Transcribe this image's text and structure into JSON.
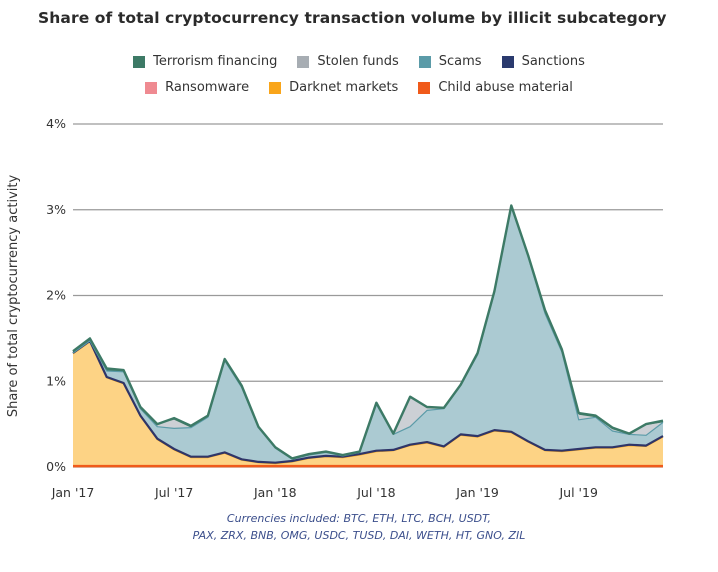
{
  "chart_data": {
    "type": "area",
    "stacked": true,
    "title": "Share of total cryptocurrency transaction volume by illicit subcategory",
    "xlabel": "",
    "ylabel": "Share of total cryptocurrency activity",
    "ylim": [
      0,
      4
    ],
    "yticks": [
      0,
      1,
      2,
      3,
      4
    ],
    "ytick_labels": [
      "0%",
      "1%",
      "2%",
      "3%",
      "4%"
    ],
    "xtick_labels": [
      "Jan '17",
      "Jul '17",
      "Jan '18",
      "Jul '18",
      "Jan '19",
      "Jul '19"
    ],
    "xtick_index": [
      0,
      6,
      12,
      18,
      24,
      30
    ],
    "grid": true,
    "legend_position": "top-center",
    "x": [
      "2017-01",
      "2017-02",
      "2017-03",
      "2017-04",
      "2017-05",
      "2017-06",
      "2017-07",
      "2017-08",
      "2017-09",
      "2017-10",
      "2017-11",
      "2017-12",
      "2018-01",
      "2018-02",
      "2018-03",
      "2018-04",
      "2018-05",
      "2018-06",
      "2018-07",
      "2018-08",
      "2018-09",
      "2018-10",
      "2018-11",
      "2018-12",
      "2019-01",
      "2019-02",
      "2019-03",
      "2019-04",
      "2019-05",
      "2019-06",
      "2019-07",
      "2019-08",
      "2019-09",
      "2019-10",
      "2019-11",
      "2019-12"
    ],
    "series": [
      {
        "name": "Child abuse material",
        "color": "#f05a1a",
        "values": [
          0.01,
          0.01,
          0.01,
          0.01,
          0.01,
          0.01,
          0.01,
          0.01,
          0.01,
          0.01,
          0.01,
          0.01,
          0.01,
          0.01,
          0.01,
          0.01,
          0.01,
          0.01,
          0.01,
          0.01,
          0.01,
          0.01,
          0.01,
          0.01,
          0.01,
          0.01,
          0.01,
          0.01,
          0.01,
          0.01,
          0.01,
          0.01,
          0.01,
          0.01,
          0.01,
          0.01
        ]
      },
      {
        "name": "Darknet markets",
        "color": "#f9a51a",
        "values": [
          1.31,
          1.45,
          1.03,
          0.96,
          0.58,
          0.31,
          0.19,
          0.1,
          0.1,
          0.15,
          0.07,
          0.04,
          0.03,
          0.05,
          0.09,
          0.11,
          0.1,
          0.13,
          0.17,
          0.18,
          0.24,
          0.27,
          0.22,
          0.36,
          0.34,
          0.41,
          0.39,
          0.28,
          0.18,
          0.17,
          0.19,
          0.21,
          0.21,
          0.24,
          0.23,
          0.34
        ]
      },
      {
        "name": "Ransomware",
        "color": "#ef8a91",
        "values": [
          0.005,
          0.005,
          0.005,
          0.005,
          0.005,
          0.005,
          0.005,
          0.005,
          0.005,
          0.005,
          0.005,
          0.005,
          0.005,
          0.005,
          0.005,
          0.005,
          0.005,
          0.005,
          0.005,
          0.005,
          0.005,
          0.005,
          0.005,
          0.005,
          0.005,
          0.005,
          0.005,
          0.005,
          0.005,
          0.005,
          0.005,
          0.005,
          0.005,
          0.005,
          0.005,
          0.005
        ]
      },
      {
        "name": "Sanctions",
        "color": "#2a3a6e",
        "values": [
          0.005,
          0.005,
          0.005,
          0.005,
          0.005,
          0.005,
          0.005,
          0.005,
          0.005,
          0.005,
          0.005,
          0.005,
          0.005,
          0.005,
          0.005,
          0.005,
          0.005,
          0.005,
          0.005,
          0.005,
          0.005,
          0.005,
          0.005,
          0.005,
          0.005,
          0.005,
          0.005,
          0.005,
          0.005,
          0.005,
          0.005,
          0.005,
          0.005,
          0.005,
          0.005,
          0.005
        ]
      },
      {
        "name": "Scams",
        "color": "#5b9ba8",
        "values": [
          0.0,
          0.0,
          0.07,
          0.13,
          0.08,
          0.14,
          0.24,
          0.34,
          0.46,
          1.07,
          0.84,
          0.4,
          0.17,
          0.02,
          0.03,
          0.04,
          0.01,
          0.02,
          0.54,
          0.18,
          0.21,
          0.37,
          0.44,
          0.57,
          0.95,
          1.6,
          2.62,
          2.15,
          1.59,
          1.15,
          0.34,
          0.35,
          0.19,
          0.12,
          0.12,
          0.16
        ]
      },
      {
        "name": "Stolen funds",
        "color": "#a7adb3",
        "values": [
          0.0,
          0.0,
          0.0,
          0.0,
          0.0,
          0.03,
          0.1,
          0.0,
          0.0,
          0.0,
          0.0,
          0.0,
          0.0,
          0.0,
          0.0,
          0.0,
          0.0,
          0.0,
          0.0,
          0.0,
          0.34,
          0.03,
          0.0,
          0.0,
          0.0,
          0.0,
          0.0,
          0.0,
          0.02,
          0.0,
          0.06,
          0.0,
          0.02,
          0.0,
          0.12,
          0.0
        ]
      },
      {
        "name": "Terrorism financing",
        "color": "#3d7a66",
        "values": [
          0.02,
          0.03,
          0.03,
          0.02,
          0.02,
          0.0,
          0.02,
          0.02,
          0.02,
          0.02,
          0.02,
          0.01,
          0.01,
          0.01,
          0.01,
          0.01,
          0.01,
          0.01,
          0.02,
          0.01,
          0.01,
          0.01,
          0.01,
          0.01,
          0.02,
          0.02,
          0.02,
          0.02,
          0.02,
          0.03,
          0.02,
          0.02,
          0.02,
          0.01,
          0.01,
          0.02
        ]
      }
    ],
    "totals": [
      1.35,
      1.5,
      1.15,
      1.13,
      0.7,
      0.5,
      0.57,
      0.48,
      0.6,
      1.26,
      0.95,
      0.47,
      0.23,
      0.1,
      0.15,
      0.18,
      0.14,
      0.18,
      0.75,
      0.39,
      0.82,
      0.7,
      0.68,
      0.96,
      1.33,
      2.05,
      3.05,
      2.47,
      1.83,
      1.37,
      0.63,
      0.6,
      0.45,
      0.39,
      0.5,
      0.54
    ]
  },
  "legend": {
    "row1": [
      {
        "label": "Terrorism financing",
        "color": "#3d7a66"
      },
      {
        "label": "Stolen funds",
        "color": "#a7adb3"
      },
      {
        "label": "Scams",
        "color": "#5b9ba8"
      },
      {
        "label": "Sanctions",
        "color": "#2a3a6e"
      }
    ],
    "row2": [
      {
        "label": "Ransomware",
        "color": "#ef8a91"
      },
      {
        "label": "Darknet markets",
        "color": "#f9a51a"
      },
      {
        "label": "Child abuse material",
        "color": "#f05a1a"
      }
    ]
  },
  "footnote": {
    "line1": "Currencies included: BTC, ETH, LTC, BCH, USDT,",
    "line2": "PAX, ZRX, BNB, OMG, USDC, TUSD, DAI, WETH, HT, GNO, ZIL"
  }
}
